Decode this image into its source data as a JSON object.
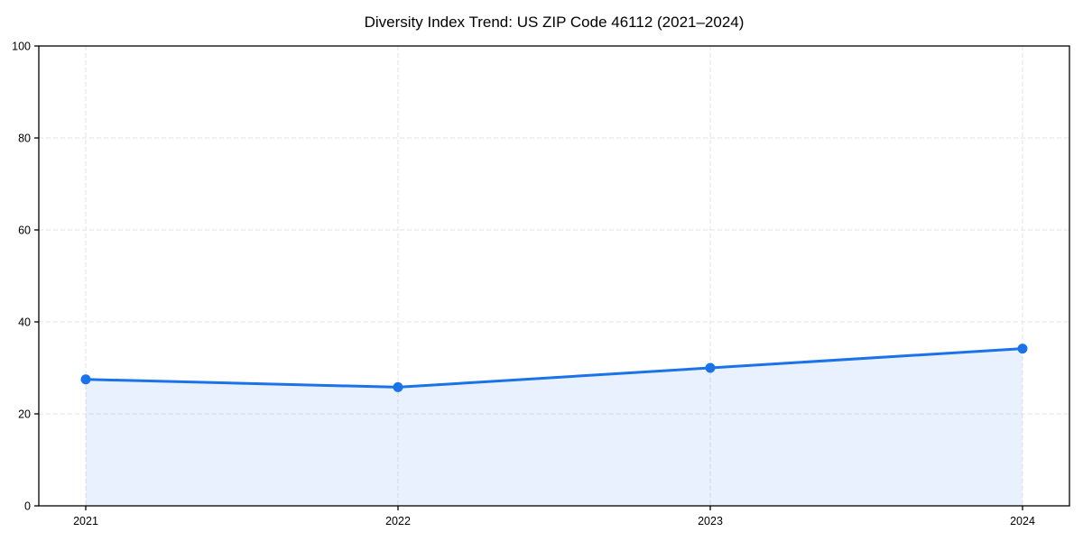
{
  "chart_data": {
    "type": "line",
    "title": "Diversity Index Trend: US ZIP Code 46112 (2021–2024)",
    "x": [
      2021,
      2022,
      2023,
      2024
    ],
    "xtick_labels": [
      "2021",
      "2022",
      "2023",
      "2024"
    ],
    "series": [
      {
        "name": "Diversity Index",
        "values": [
          27.5,
          25.8,
          30.0,
          34.2
        ]
      }
    ],
    "xlabel": "",
    "ylabel": "",
    "ylim": [
      0,
      100
    ],
    "yticks": [
      0,
      20,
      40,
      60,
      80,
      100
    ],
    "ytick_labels": [
      "0",
      "20",
      "40",
      "60",
      "80",
      "100"
    ],
    "grid": true,
    "grid_style": "dashed",
    "legend_position": "none",
    "area_fill": true,
    "marker": "circle",
    "colors": {
      "line": "#1a73e8",
      "marker": "#1a73e8",
      "fill": "#1a73e8",
      "fill_opacity": 0.1,
      "grid": "#e3e3e3",
      "axis": "#000000",
      "text": "#000000",
      "background": "#ffffff"
    }
  }
}
